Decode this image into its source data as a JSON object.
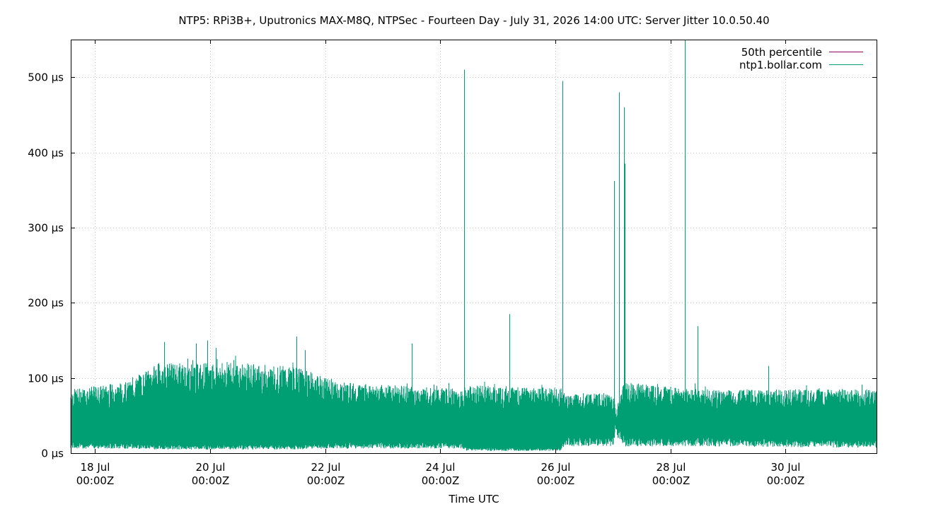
{
  "chart_data": {
    "type": "line",
    "title": "NTP5: RPi3B+, Uputronics MAX-M8Q, NTPSec - Fourteen Day - July 31, 2026 14:00 UTC: Server Jitter 10.0.50.40",
    "xlabel": "Time UTC",
    "ylabel": "",
    "y_unit": "µs",
    "xlim_days": [
      17.58,
      31.58
    ],
    "ylim": [
      0,
      550
    ],
    "grid": true,
    "legend_position": "top-right",
    "x_ticks": [
      {
        "day": 18,
        "line1": "18 Jul",
        "line2": "00:00Z"
      },
      {
        "day": 20,
        "line1": "20 Jul",
        "line2": "00:00Z"
      },
      {
        "day": 22,
        "line1": "22 Jul",
        "line2": "00:00Z"
      },
      {
        "day": 24,
        "line1": "24 Jul",
        "line2": "00:00Z"
      },
      {
        "day": 26,
        "line1": "26 Jul",
        "line2": "00:00Z"
      },
      {
        "day": 28,
        "line1": "28 Jul",
        "line2": "00:00Z"
      },
      {
        "day": 30,
        "line1": "30 Jul",
        "line2": "00:00Z"
      }
    ],
    "y_ticks": [
      {
        "value": 0,
        "label": "0 µs"
      },
      {
        "value": 100,
        "label": "100 µs"
      },
      {
        "value": 200,
        "label": "200 µs"
      },
      {
        "value": 300,
        "label": "300 µs"
      },
      {
        "value": 400,
        "label": "400 µs"
      },
      {
        "value": 500,
        "label": "500 µs"
      }
    ],
    "series": [
      {
        "name": "50th percentile",
        "color": "#8b005b",
        "values": []
      },
      {
        "name": "ntp1.bollar.com",
        "color": "#009e73",
        "band": [
          {
            "day": 17.58,
            "low": 10,
            "high": 85
          },
          {
            "day": 18.6,
            "low": 10,
            "high": 95
          },
          {
            "day": 19.1,
            "low": 8,
            "high": 120
          },
          {
            "day": 20.5,
            "low": 8,
            "high": 120
          },
          {
            "day": 21.5,
            "low": 8,
            "high": 115
          },
          {
            "day": 22.2,
            "low": 10,
            "high": 95
          },
          {
            "day": 24.4,
            "low": 10,
            "high": 85
          },
          {
            "day": 24.45,
            "low": 5,
            "high": 90
          },
          {
            "day": 26.1,
            "low": 5,
            "high": 88
          },
          {
            "day": 26.15,
            "low": 15,
            "high": 80
          },
          {
            "day": 27.0,
            "low": 15,
            "high": 80
          },
          {
            "day": 27.05,
            "low": 40,
            "high": 60
          },
          {
            "day": 27.2,
            "low": 15,
            "high": 95
          },
          {
            "day": 28.5,
            "low": 15,
            "high": 85
          },
          {
            "day": 31.58,
            "low": 12,
            "high": 85
          }
        ],
        "spikes": [
          {
            "day": 19.2,
            "value": 148
          },
          {
            "day": 19.75,
            "value": 146
          },
          {
            "day": 19.95,
            "value": 150
          },
          {
            "day": 20.1,
            "value": 140
          },
          {
            "day": 21.5,
            "value": 155
          },
          {
            "day": 21.65,
            "value": 137
          },
          {
            "day": 23.5,
            "value": 146
          },
          {
            "day": 24.42,
            "value": 510
          },
          {
            "day": 25.2,
            "value": 185
          },
          {
            "day": 26.12,
            "value": 495
          },
          {
            "day": 27.02,
            "value": 362
          },
          {
            "day": 27.11,
            "value": 480
          },
          {
            "day": 27.19,
            "value": 460
          },
          {
            "day": 27.2,
            "value": 385
          },
          {
            "day": 28.25,
            "value": 550
          },
          {
            "day": 28.47,
            "value": 169
          },
          {
            "day": 29.7,
            "value": 116
          }
        ]
      }
    ]
  }
}
